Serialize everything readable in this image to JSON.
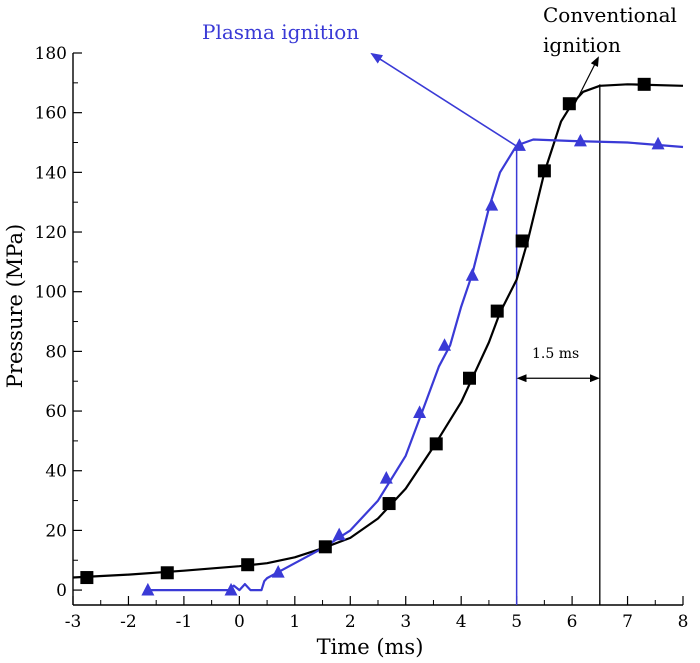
{
  "chart_data": {
    "type": "line",
    "title": "",
    "xlabel": "Time (ms)",
    "ylabel": "Pressure (MPa)",
    "xlim": [
      -3,
      8
    ],
    "ylim": [
      -5,
      180
    ],
    "xticks": [
      -3,
      -2,
      -1,
      0,
      1,
      2,
      3,
      4,
      5,
      6,
      7,
      8
    ],
    "yticks": [
      0,
      20,
      40,
      60,
      80,
      100,
      120,
      140,
      160,
      180
    ],
    "grid": false,
    "colors": {
      "conventional": "#000000",
      "plasma": "#3a3ad6"
    },
    "series": [
      {
        "id": "conventional",
        "name": "Conventional ignition",
        "marker": "square",
        "line": [
          [
            -3,
            4.2
          ],
          [
            -2,
            5.2
          ],
          [
            -1,
            6.5
          ],
          [
            0,
            8
          ],
          [
            0.5,
            9
          ],
          [
            1,
            11
          ],
          [
            1.5,
            14
          ],
          [
            2,
            17.5
          ],
          [
            2.5,
            24
          ],
          [
            3,
            34
          ],
          [
            3.5,
            48
          ],
          [
            4,
            63
          ],
          [
            4.2,
            71
          ],
          [
            4.5,
            83
          ],
          [
            4.7,
            93
          ],
          [
            5,
            104
          ],
          [
            5.2,
            117
          ],
          [
            5.5,
            140
          ],
          [
            5.8,
            157
          ],
          [
            6,
            163
          ],
          [
            6.2,
            167
          ],
          [
            6.5,
            169
          ],
          [
            7,
            169.5
          ],
          [
            8,
            169
          ]
        ],
        "markers": [
          [
            -2.75,
            4.2
          ],
          [
            -1.3,
            5.8
          ],
          [
            0.15,
            8.5
          ],
          [
            1.55,
            14.5
          ],
          [
            2.7,
            29
          ],
          [
            3.55,
            49
          ],
          [
            4.15,
            71
          ],
          [
            4.65,
            93.5
          ],
          [
            5.1,
            117
          ],
          [
            5.5,
            140.5
          ],
          [
            5.95,
            163
          ],
          [
            7.3,
            169.5
          ]
        ]
      },
      {
        "id": "plasma",
        "name": "Plasma ignition",
        "marker": "triangle",
        "line": [
          [
            -1.7,
            0
          ],
          [
            -0.2,
            0
          ],
          [
            -0.1,
            1.5
          ],
          [
            0,
            0
          ],
          [
            0.1,
            2
          ],
          [
            0.2,
            0
          ],
          [
            0.4,
            0
          ],
          [
            0.45,
            3
          ],
          [
            0.5,
            4
          ],
          [
            1,
            9
          ],
          [
            1.5,
            14
          ],
          [
            2,
            20
          ],
          [
            2.5,
            30
          ],
          [
            3,
            45
          ],
          [
            3.3,
            60
          ],
          [
            3.6,
            75
          ],
          [
            3.8,
            82
          ],
          [
            4,
            95
          ],
          [
            4.2,
            106
          ],
          [
            4.5,
            128
          ],
          [
            4.7,
            140
          ],
          [
            5,
            149
          ],
          [
            5.3,
            151
          ],
          [
            6,
            150.5
          ],
          [
            7,
            150
          ],
          [
            8,
            148.5
          ]
        ],
        "markers": [
          [
            -1.65,
            0
          ],
          [
            -0.15,
            0
          ],
          [
            0.7,
            6
          ],
          [
            1.8,
            18.5
          ],
          [
            2.65,
            37.5
          ],
          [
            3.25,
            59.5
          ],
          [
            3.7,
            82
          ],
          [
            4.2,
            105.5
          ],
          [
            4.55,
            129
          ],
          [
            5.05,
            149
          ],
          [
            6.15,
            150.5
          ],
          [
            7.55,
            149.5
          ]
        ]
      }
    ],
    "annotations": {
      "plasma_label": "Plasma ignition",
      "conventional_label_line1": "Conventional",
      "conventional_label_line2": "ignition",
      "delta_label": "1.5 ms",
      "plasma_vline_x": 5.0,
      "conventional_vline_x": 6.5,
      "delta_arrow_y": 71
    }
  }
}
